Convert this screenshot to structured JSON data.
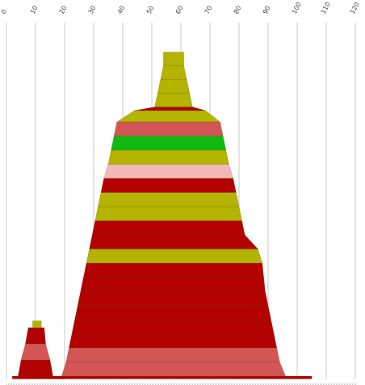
{
  "colors": {
    "dark_red": "#b30000",
    "coral": "#d35555",
    "olive": "#b3b300",
    "green": "#10b810",
    "pink": "#f2b8b8",
    "grid": "#c8c8c8"
  },
  "chart_data": {
    "type": "area",
    "title": "",
    "xlabel": "",
    "ylabel": "",
    "xlim": [
      0,
      120
    ],
    "x_ticks": [
      "0",
      "10",
      "20",
      "30",
      "40",
      "50",
      "60",
      "70",
      "80",
      "90",
      "100",
      "110",
      "120"
    ],
    "grid": true,
    "note_layout": "stacked horizontal bands, widest at bottom; each band spans an x-range",
    "shapes": [
      {
        "name": "small",
        "bands": [
          {
            "color": "dark_red",
            "x_start": 4,
            "x_end": 20
          },
          {
            "color": "dark_red",
            "x_start": 4,
            "x_end": 16
          },
          {
            "color": "coral",
            "x_start": 5,
            "x_end": 15
          },
          {
            "color": "dark_red",
            "x_start": 6.5,
            "x_end": 13.5
          },
          {
            "color": "dark_red",
            "x_start": 7.5,
            "x_end": 13
          },
          {
            "color": "olive",
            "x_start": 9,
            "x_end": 12
          }
        ]
      },
      {
        "name": "main",
        "bands": [
          {
            "color": "dark_red",
            "x_start": 2,
            "x_end": 105
          },
          {
            "color": "coral",
            "x_start": 19,
            "x_end": 96
          },
          {
            "color": "coral",
            "x_start": 20.5,
            "x_end": 94
          },
          {
            "color": "dark_red",
            "x_start": 21.5,
            "x_end": 93
          },
          {
            "color": "dark_red",
            "x_start": 22.5,
            "x_end": 92
          },
          {
            "color": "dark_red",
            "x_start": 23.5,
            "x_end": 91
          },
          {
            "color": "dark_red",
            "x_start": 24.5,
            "x_end": 90
          },
          {
            "color": "dark_red",
            "x_start": 25.5,
            "x_end": 89
          },
          {
            "color": "dark_red",
            "x_start": 26.5,
            "x_end": 88.5
          },
          {
            "color": "olive",
            "x_start": 27.5,
            "x_end": 88
          },
          {
            "color": "dark_red",
            "x_start": 28.5,
            "x_end": 86.5
          },
          {
            "color": "dark_red",
            "x_start": 29.5,
            "x_end": 82
          },
          {
            "color": "olive",
            "x_start": 30.5,
            "x_end": 81
          },
          {
            "color": "olive",
            "x_start": 31.5,
            "x_end": 80
          },
          {
            "color": "dark_red",
            "x_start": 32.5,
            "x_end": 79
          },
          {
            "color": "pink",
            "x_start": 33.5,
            "x_end": 78
          },
          {
            "color": "olive",
            "x_start": 35,
            "x_end": 76.5
          },
          {
            "color": "green",
            "x_start": 36,
            "x_end": 75.5
          },
          {
            "color": "coral",
            "x_start": 37,
            "x_end": 74.5
          },
          {
            "color": "olive",
            "x_start": 38,
            "x_end": 73.5
          },
          {
            "color": "dark_red",
            "x_start": 44,
            "x_end": 68.5
          },
          {
            "color": "olive",
            "x_start": 51,
            "x_end": 64
          },
          {
            "color": "olive",
            "x_start": 52,
            "x_end": 63
          },
          {
            "color": "olive",
            "x_start": 53,
            "x_end": 62
          },
          {
            "color": "olive",
            "x_start": 54,
            "x_end": 61
          }
        ]
      }
    ]
  }
}
